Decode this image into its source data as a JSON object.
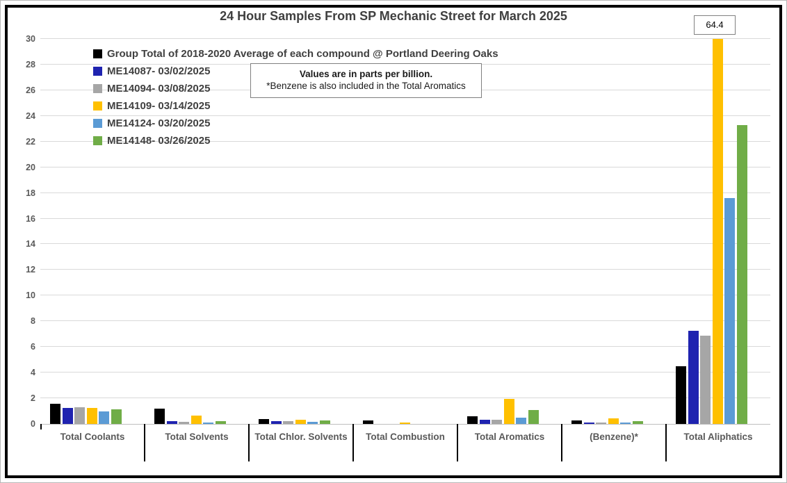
{
  "title": "24 Hour Samples From SP Mechanic Street for March 2025",
  "callout": {
    "value": "64.4"
  },
  "note_box": {
    "line1": "Values are in parts per billion.",
    "line2": "*Benzene is also included in the Total Aromatics"
  },
  "chart_data": {
    "type": "bar",
    "title": "24 Hour Samples From SP Mechanic Street for March 2025",
    "categories": [
      "Total Coolants",
      "Total Solvents",
      "Total Chlor. Solvents",
      "Total Combustion",
      "Total Aromatics",
      "(Benzene)*",
      "Total Aliphatics"
    ],
    "series": [
      {
        "name": "Group Total of 2018-2020 Average of each compound @ Portland Deering Oaks",
        "color": "#000000",
        "values": [
          1.55,
          1.2,
          0.4,
          0.27,
          0.6,
          0.25,
          4.5
        ]
      },
      {
        "name": "ME14087- 03/02/2025",
        "color": "#1f23b0",
        "values": [
          1.25,
          0.2,
          0.2,
          0,
          0.3,
          0.12,
          7.25
        ]
      },
      {
        "name": "ME14094- 03/08/2025",
        "color": "#a6a6a6",
        "values": [
          1.3,
          0.18,
          0.2,
          0,
          0.3,
          0.1,
          6.9
        ]
      },
      {
        "name": "ME14109- 03/14/2025",
        "color": "#ffc000",
        "values": [
          1.25,
          0.65,
          0.3,
          0.1,
          1.95,
          0.45,
          64.4
        ]
      },
      {
        "name": "ME14124- 03/20/2025",
        "color": "#5b9bd5",
        "values": [
          1.0,
          0.1,
          0.15,
          0,
          0.5,
          0.1,
          17.6
        ]
      },
      {
        "name": "ME14148- 03/26/2025",
        "color": "#70ad47",
        "values": [
          1.15,
          0.2,
          0.25,
          0,
          1.1,
          0.2,
          23.3
        ]
      }
    ],
    "ylim": [
      0,
      30
    ],
    "y_ticks": [
      0,
      2,
      4,
      6,
      8,
      10,
      12,
      14,
      16,
      18,
      20,
      22,
      24,
      26,
      28,
      30
    ],
    "grid": true,
    "legend_position": "top-left-inside",
    "annotation": {
      "label": "64.4",
      "series": "ME14109- 03/14/2025",
      "category": "Total Aliphatics",
      "true_value": 64.4,
      "note": "bar clipped at axis max 30"
    }
  }
}
